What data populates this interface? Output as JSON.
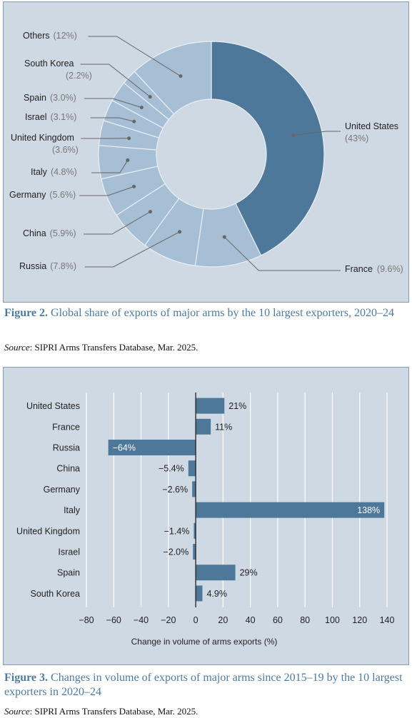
{
  "chart_data": [
    {
      "type": "pie",
      "variant": "donut",
      "categories": [
        "United States",
        "France",
        "Russia",
        "China",
        "Germany",
        "Italy",
        "United Kingdom",
        "Israel",
        "Spain",
        "South Korea",
        "Others"
      ],
      "values": [
        43,
        9.6,
        7.8,
        5.9,
        5.6,
        4.8,
        3.6,
        3.1,
        3.0,
        2.2,
        12
      ],
      "value_labels": [
        "(43%)",
        "(9.6%)",
        "(7.8%)",
        "(5.9%)",
        "(5.6%)",
        "(4.8%)",
        "(3.6%)",
        "(3.1%)",
        "(3.0%)",
        "(2.2%)",
        "(12%)"
      ],
      "colors": {
        "highlight": "#4d7899",
        "other": "#a6bfd4",
        "stroke": "#e9eff5",
        "leader": "#666666"
      }
    },
    {
      "type": "bar",
      "orientation": "horizontal",
      "categories": [
        "United States",
        "France",
        "Russia",
        "China",
        "Germany",
        "Italy",
        "United Kingdom",
        "Israel",
        "Spain",
        "South Korea"
      ],
      "values": [
        21,
        11,
        -64,
        -5.4,
        -2.6,
        138,
        -1.4,
        -2.0,
        29,
        4.9
      ],
      "value_labels": [
        "21%",
        "11%",
        "−64%",
        "−5.4%",
        "−2.6%",
        "138%",
        "−1.4%",
        "−2.0%",
        "29%",
        "4.9%"
      ],
      "xlabel": "Change in volume of arms exports (%)",
      "xlim": [
        -80,
        140
      ],
      "xticks": [
        -80,
        -60,
        -40,
        -20,
        0,
        20,
        40,
        60,
        80,
        100,
        120,
        140
      ],
      "xtick_labels": [
        "−80",
        "−60",
        "−40",
        "−20",
        "0",
        "20",
        "40",
        "60",
        "80",
        "100",
        "120",
        "140"
      ],
      "grid": true,
      "colors": {
        "bar": "#4d7899",
        "grid": "#ffffff",
        "axis": "#222222"
      }
    }
  ],
  "figure2": {
    "number": "Figure 2.",
    "title": "Global share of exports of major arms by the 10 largest exporters, 2020–24",
    "source_label": "Source",
    "source_text": ": SIPRI Arms Transfers Database, Mar. 2025."
  },
  "figure3": {
    "number": "Figure 3.",
    "title": "Changes in volume of exports of major arms since 2015–19 by the 10 largest exporters in 2020–24",
    "source_label": "Source",
    "source_text": ": SIPRI Arms Transfers Database, Mar. 2025."
  }
}
